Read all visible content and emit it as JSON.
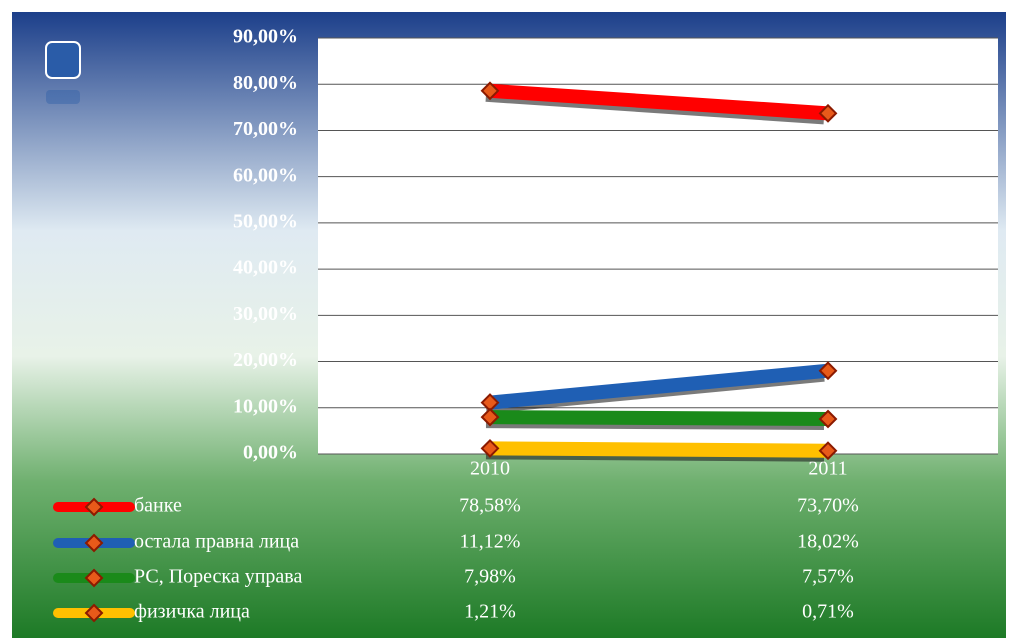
{
  "chart_data": {
    "type": "line",
    "categories": [
      "2010",
      "2011"
    ],
    "series": [
      {
        "name": "банке",
        "color": "#ff0000",
        "values": [
          78.58,
          73.7
        ],
        "value_labels": [
          "78,58%",
          "73,70%"
        ]
      },
      {
        "name": "остала правна лица",
        "color": "#1f5fb4",
        "values": [
          11.12,
          18.02
        ],
        "value_labels": [
          "11,12%",
          "18,02%"
        ]
      },
      {
        "name": "РС, Пореска управа",
        "color": "#1a8a1a",
        "values": [
          7.98,
          7.57
        ],
        "value_labels": [
          "7,98%",
          "7,57%"
        ]
      },
      {
        "name": "физичка лица",
        "color": "#ffc000",
        "values": [
          1.21,
          0.71
        ],
        "value_labels": [
          "1,21%",
          "0,71%"
        ]
      }
    ],
    "ylim": [
      0,
      90
    ],
    "yticks": [
      {
        "value": 0,
        "label": "0,00%"
      },
      {
        "value": 10,
        "label": "10,00%"
      },
      {
        "value": 20,
        "label": "20,00%"
      },
      {
        "value": 30,
        "label": "30,00%"
      },
      {
        "value": 40,
        "label": "40,00%"
      },
      {
        "value": 50,
        "label": "50,00%"
      },
      {
        "value": 60,
        "label": "60,00%"
      },
      {
        "value": 70,
        "label": "70,00%"
      },
      {
        "value": 80,
        "label": "80,00%"
      },
      {
        "value": 90,
        "label": "90,00%"
      }
    ],
    "grid": true
  }
}
